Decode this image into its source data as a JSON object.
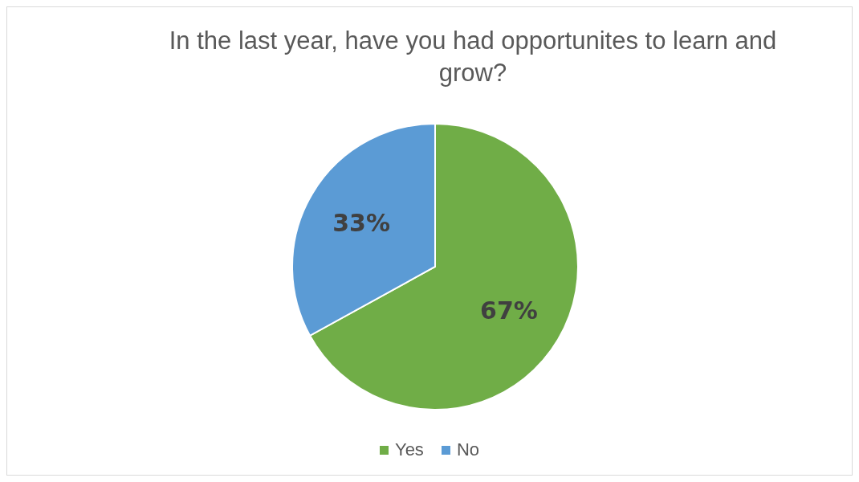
{
  "chart_data": {
    "type": "pie",
    "title": "In the last year, have you had opportunites to learn and grow?",
    "categories": [
      "Yes",
      "No"
    ],
    "values": [
      67,
      33
    ],
    "colors": [
      "#70ad47",
      "#5b9bd5"
    ],
    "value_labels": [
      "67%",
      "33%"
    ],
    "legend": "bottom"
  }
}
